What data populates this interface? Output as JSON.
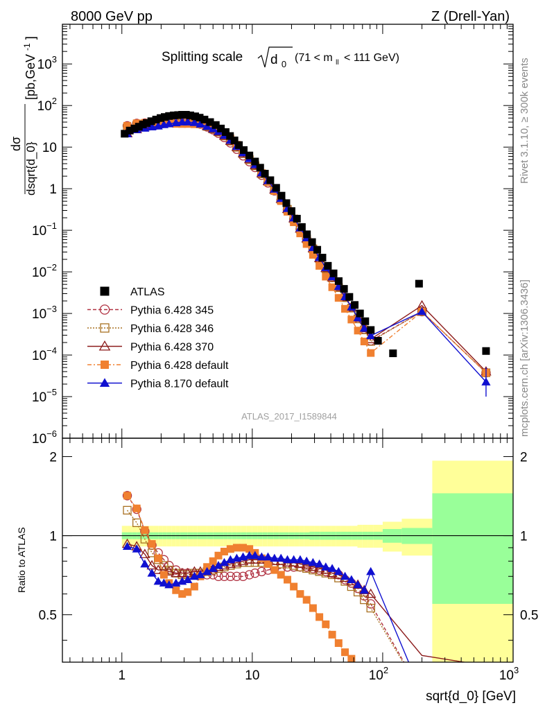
{
  "header": {
    "left": "8000 GeV pp",
    "right": "Z (Drell-Yan)"
  },
  "side_labels": {
    "rivet": "Rivet 3.1.10, ≥ 300k events",
    "mcplots": "mcplots.cern.ch [arXiv:1306.3436]"
  },
  "chart_data": {
    "type": "scatter",
    "title_main": "Splitting scale",
    "title_sqrt_arg": "d",
    "title_sqrt_sub": "0",
    "title_range": "(71 < m",
    "title_range_sub": "ll",
    "title_range_end": "< 111 GeV)",
    "analysis_tag": "ATLAS_2017_I1589844",
    "ylabel_top": "dσ",
    "ylabel_bottom": "dsqrt{d_0}",
    "ylabel_units": "[pb,GeV",
    "ylabel_units_sup": "-1",
    "ylabel_units_end": "]",
    "ratio_ylabel": "Ratio to ATLAS",
    "xlabel": "sqrt{d_0} [GeV]",
    "x_scale": "log",
    "xlim": [
      0.35,
      1000
    ],
    "ylim_main": [
      1e-06,
      9000
    ],
    "ylim_ratio": [
      0.33,
      2.35
    ],
    "legend_position": "lower-left",
    "x_tick_labels": [
      {
        "v": 1,
        "label": "1"
      },
      {
        "v": 10,
        "label": "10"
      },
      {
        "v": 100,
        "label": "10",
        "sup": "2"
      },
      {
        "v": 1000,
        "label": "10",
        "sup": "3"
      }
    ],
    "y_tick_labels": [
      {
        "v": 1000,
        "base": "10",
        "sup": "3"
      },
      {
        "v": 100,
        "base": "10",
        "sup": "2"
      },
      {
        "v": 10,
        "base": "10",
        "sup": ""
      },
      {
        "v": 1,
        "base": "1",
        "sup": ""
      },
      {
        "v": 0.1,
        "base": "10",
        "sup": "−1"
      },
      {
        "v": 0.01,
        "base": "10",
        "sup": "−2"
      },
      {
        "v": 0.001,
        "base": "10",
        "sup": "−3"
      },
      {
        "v": 0.0001,
        "base": "10",
        "sup": "−4"
      },
      {
        "v": 1e-05,
        "base": "10",
        "sup": "−5"
      },
      {
        "v": 1e-06,
        "base": "10",
        "sup": "−6"
      }
    ],
    "ratio_tick_labels": [
      {
        "v": 0.5,
        "label": "0.5"
      },
      {
        "v": 1,
        "label": "1"
      },
      {
        "v": 2,
        "label": "2"
      }
    ],
    "band_edges": [
      1.0,
      1.1,
      1.2,
      1.3,
      1.4,
      1.5,
      1.6,
      1.75,
      1.9,
      2.05,
      2.2,
      2.4,
      2.6,
      2.8,
      3.0,
      3.2,
      3.5,
      3.8,
      4.1,
      4.5,
      5.0,
      5.5,
      6.0,
      6.5,
      7.0,
      7.6,
      8.2,
      9.0,
      10.0,
      11.0,
      12.0,
      13.0,
      14.5,
      16.0,
      17.5,
      19.0,
      21.0,
      23.0,
      25.0,
      27.5,
      30.0,
      33.0,
      36.0,
      40.0,
      44.0,
      48.0,
      53.0,
      58.0,
      64.0,
      70.0,
      77.0,
      85.0,
      100.0,
      140.0,
      240.0,
      1000.0
    ],
    "band_stat_halfwidth": [
      0.03,
      0.03,
      0.03,
      0.03,
      0.03,
      0.03,
      0.03,
      0.03,
      0.03,
      0.03,
      0.03,
      0.03,
      0.03,
      0.03,
      0.03,
      0.03,
      0.03,
      0.03,
      0.03,
      0.03,
      0.03,
      0.03,
      0.03,
      0.03,
      0.03,
      0.03,
      0.03,
      0.03,
      0.03,
      0.03,
      0.03,
      0.03,
      0.03,
      0.03,
      0.03,
      0.03,
      0.03,
      0.03,
      0.03,
      0.035,
      0.035,
      0.035,
      0.035,
      0.035,
      0.035,
      0.035,
      0.035,
      0.035,
      0.035,
      0.035,
      0.035,
      0.035,
      0.06,
      0.07,
      0.45
    ],
    "band_total_halfwidth": [
      0.09,
      0.09,
      0.09,
      0.09,
      0.09,
      0.09,
      0.09,
      0.09,
      0.09,
      0.09,
      0.09,
      0.09,
      0.09,
      0.09,
      0.09,
      0.09,
      0.09,
      0.09,
      0.09,
      0.09,
      0.09,
      0.09,
      0.09,
      0.09,
      0.09,
      0.09,
      0.09,
      0.09,
      0.09,
      0.09,
      0.09,
      0.09,
      0.09,
      0.09,
      0.09,
      0.09,
      0.09,
      0.09,
      0.09,
      0.09,
      0.09,
      0.09,
      0.09,
      0.09,
      0.09,
      0.09,
      0.09,
      0.09,
      0.1,
      0.1,
      0.1,
      0.1,
      0.13,
      0.16,
      0.93
    ],
    "atlas": {
      "name": "ATLAS",
      "color": "#000000",
      "marker": "square",
      "x": [
        1.05,
        1.15,
        1.25,
        1.35,
        1.45,
        1.55,
        1.68,
        1.83,
        1.98,
        2.13,
        2.3,
        2.5,
        2.7,
        2.9,
        3.1,
        3.35,
        3.65,
        3.95,
        4.3,
        4.75,
        5.25,
        5.75,
        6.25,
        6.75,
        7.3,
        7.9,
        8.6,
        9.5,
        10.5,
        11.5,
        12.5,
        13.75,
        15.25,
        16.75,
        18.25,
        20.0,
        22.0,
        24.0,
        26.25,
        28.75,
        31.5,
        34.5,
        38.0,
        42.0,
        46.0,
        50.5,
        55.5,
        61.0,
        67.0,
        73.5,
        81.0,
        92.0,
        120.0,
        190.0,
        620.0
      ],
      "y": [
        21,
        25,
        28,
        31,
        35,
        38,
        42,
        46,
        50,
        53,
        56,
        58,
        59,
        60,
        60,
        58,
        55,
        51,
        46,
        40,
        34,
        28,
        23,
        18.5,
        14.5,
        11.2,
        8.5,
        6.3,
        4.5,
        3.2,
        2.3,
        1.6,
        1.05,
        0.68,
        0.45,
        0.29,
        0.19,
        0.12,
        0.08,
        0.052,
        0.034,
        0.022,
        0.014,
        0.0092,
        0.006,
        0.0039,
        0.0025,
        0.0016,
        0.001,
        0.00065,
        0.0004,
        0.00022,
        0.00011,
        0.0052,
        0.000125
      ]
    },
    "mc_series": [
      {
        "name": "Pythia 6.428 345",
        "color": "#b03040",
        "marker": "open-circle",
        "dash": "5,3",
        "x": [
          1.1,
          1.3,
          1.5,
          1.7,
          1.9,
          2.1,
          2.3,
          2.6,
          2.9,
          3.2,
          3.6,
          4.0,
          4.5,
          5.0,
          5.5,
          6.1,
          6.8,
          7.6,
          8.5,
          9.5,
          10.5,
          11.8,
          13.2,
          14.8,
          16.6,
          18.6,
          20.8,
          23.3,
          26.1,
          29.2,
          32.7,
          36.6,
          41.0,
          45.9,
          51.4,
          57.6,
          64.5,
          72.2,
          81.0,
          200.0,
          620.0
        ],
        "ratio": [
          1.42,
          1.26,
          1.04,
          0.92,
          0.86,
          0.81,
          0.77,
          0.74,
          0.72,
          0.72,
          0.71,
          0.71,
          0.71,
          0.71,
          0.7,
          0.7,
          0.7,
          0.7,
          0.7,
          0.71,
          0.72,
          0.73,
          0.74,
          0.75,
          0.75,
          0.76,
          0.76,
          0.76,
          0.76,
          0.75,
          0.74,
          0.73,
          0.72,
          0.71,
          0.68,
          0.66,
          0.63,
          0.59,
          0.55,
          0.25,
          0.3
        ]
      },
      {
        "name": "Pythia 6.428 346",
        "color": "#a87020",
        "marker": "open-square",
        "dash": "2,2",
        "x": [
          1.1,
          1.3,
          1.5,
          1.7,
          1.9,
          2.1,
          2.3,
          2.6,
          2.9,
          3.2,
          3.6,
          4.0,
          4.5,
          5.0,
          5.5,
          6.1,
          6.8,
          7.6,
          8.5,
          9.5,
          10.5,
          11.8,
          13.2,
          14.8,
          16.6,
          18.6,
          20.8,
          23.3,
          26.1,
          29.2,
          32.7,
          36.6,
          41.0,
          45.9,
          51.4,
          57.6,
          64.5,
          72.2,
          81.0,
          200.0,
          620.0
        ],
        "ratio": [
          1.25,
          1.12,
          0.97,
          0.86,
          0.81,
          0.77,
          0.74,
          0.72,
          0.71,
          0.71,
          0.72,
          0.72,
          0.73,
          0.74,
          0.75,
          0.76,
          0.77,
          0.78,
          0.79,
          0.79,
          0.79,
          0.79,
          0.79,
          0.78,
          0.78,
          0.78,
          0.77,
          0.76,
          0.75,
          0.74,
          0.73,
          0.72,
          0.71,
          0.69,
          0.67,
          0.64,
          0.61,
          0.57,
          0.53,
          0.25,
          0.3
        ]
      },
      {
        "name": "Pythia 6.428 370",
        "color": "#8b1a1a",
        "marker": "open-triangle",
        "dash": "",
        "x": [
          1.1,
          1.3,
          1.5,
          1.7,
          1.9,
          2.1,
          2.3,
          2.6,
          2.9,
          3.2,
          3.6,
          4.0,
          4.5,
          5.0,
          5.5,
          6.1,
          6.8,
          7.6,
          8.5,
          9.5,
          10.5,
          11.8,
          13.2,
          14.8,
          16.6,
          18.6,
          20.8,
          23.3,
          26.1,
          29.2,
          32.7,
          36.6,
          41.0,
          45.9,
          51.4,
          57.6,
          64.5,
          72.2,
          81.0,
          200.0,
          620.0
        ],
        "ratio": [
          0.93,
          0.91,
          0.85,
          0.77,
          0.74,
          0.74,
          0.73,
          0.72,
          0.72,
          0.72,
          0.73,
          0.73,
          0.74,
          0.75,
          0.76,
          0.77,
          0.78,
          0.79,
          0.8,
          0.81,
          0.81,
          0.81,
          0.81,
          0.8,
          0.8,
          0.79,
          0.79,
          0.78,
          0.77,
          0.76,
          0.75,
          0.74,
          0.72,
          0.71,
          0.69,
          0.67,
          0.65,
          0.62,
          0.6,
          0.35,
          0.32
        ]
      },
      {
        "name": "Pythia 6.428 default",
        "color": "#f08030",
        "marker": "filled-square",
        "dash": "6,3,2,3",
        "x": [
          1.1,
          1.3,
          1.5,
          1.7,
          1.9,
          2.1,
          2.3,
          2.6,
          2.9,
          3.2,
          3.6,
          4.0,
          4.5,
          5.0,
          5.5,
          6.1,
          6.8,
          7.6,
          8.5,
          9.5,
          10.5,
          11.8,
          13.2,
          14.8,
          16.6,
          18.6,
          20.8,
          23.3,
          26.1,
          29.2,
          32.7,
          36.6,
          41.0,
          45.9,
          51.4,
          57.6,
          64.5,
          72.2,
          81.0,
          200.0,
          620.0
        ],
        "ratio": [
          1.42,
          1.27,
          1.05,
          0.93,
          0.82,
          0.71,
          0.66,
          0.62,
          0.6,
          0.61,
          0.64,
          0.7,
          0.76,
          0.8,
          0.84,
          0.87,
          0.89,
          0.9,
          0.9,
          0.89,
          0.86,
          0.82,
          0.78,
          0.74,
          0.71,
          0.68,
          0.64,
          0.6,
          0.57,
          0.53,
          0.49,
          0.46,
          0.42,
          0.39,
          0.36,
          0.34,
          0.32,
          0.3,
          0.28,
          0.25,
          0.3
        ]
      },
      {
        "name": "Pythia 8.170 default",
        "color": "#1010d0",
        "marker": "filled-triangle",
        "dash": "",
        "x": [
          1.1,
          1.3,
          1.5,
          1.7,
          1.9,
          2.1,
          2.3,
          2.6,
          2.9,
          3.2,
          3.6,
          4.0,
          4.5,
          5.0,
          5.5,
          6.1,
          6.8,
          7.6,
          8.5,
          9.5,
          10.5,
          11.8,
          13.2,
          14.8,
          16.6,
          18.6,
          20.8,
          23.3,
          26.1,
          29.2,
          32.7,
          36.6,
          41.0,
          45.9,
          51.4,
          57.6,
          64.5,
          72.2,
          81.0,
          200.0,
          620.0
        ],
        "ratio": [
          0.91,
          0.89,
          0.78,
          0.72,
          0.67,
          0.66,
          0.65,
          0.66,
          0.67,
          0.68,
          0.7,
          0.71,
          0.73,
          0.75,
          0.77,
          0.79,
          0.81,
          0.82,
          0.83,
          0.84,
          0.84,
          0.83,
          0.83,
          0.82,
          0.82,
          0.81,
          0.81,
          0.81,
          0.8,
          0.79,
          0.78,
          0.76,
          0.75,
          0.73,
          0.7,
          0.68,
          0.65,
          0.62,
          0.73,
          0.25,
          0.18
        ]
      }
    ]
  }
}
